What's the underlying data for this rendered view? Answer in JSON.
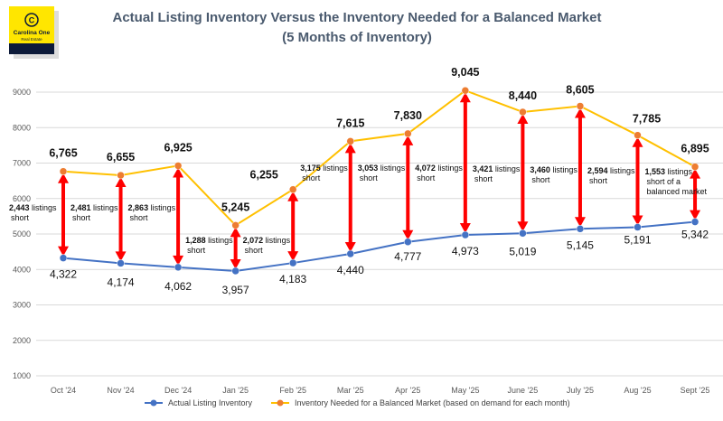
{
  "chart_data": {
    "type": "line",
    "title": "Actual Listing Inventory Versus the Inventory Needed for a Balanced Market",
    "subtitle": "(5 Months of Inventory)",
    "categories": [
      "Oct '24",
      "Nov '24",
      "Dec '24",
      "Jan '25",
      "Feb '25",
      "Mar '25",
      "Apr '25",
      "May '25",
      "June '25",
      "July '25",
      "Aug '25",
      "Sept '25"
    ],
    "ylim": [
      1000,
      9000
    ],
    "yticks": [
      1000,
      2000,
      3000,
      4000,
      5000,
      6000,
      7000,
      8000,
      9000
    ],
    "grid": true,
    "legend_position": "bottom",
    "series": [
      {
        "name": "Actual Listing Inventory",
        "color": "#4472C4",
        "values": [
          4322,
          4174,
          4062,
          3957,
          4183,
          4440,
          4777,
          4973,
          5019,
          5145,
          5191,
          5342
        ],
        "labels": [
          "4,322",
          "4,174",
          "4,062",
          "3,957",
          "4,183",
          "4,440",
          "4,777",
          "4,973",
          "5,019",
          "5,145",
          "5,191",
          "5,342"
        ]
      },
      {
        "name": "Inventory Needed for a Balanced Market (based on demand for each month)",
        "color": "#FFC000",
        "marker_color": "#ED7D31",
        "values": [
          6765,
          6655,
          6925,
          5245,
          6255,
          7615,
          7830,
          9045,
          8440,
          8605,
          7785,
          6895
        ],
        "labels": [
          "6,765",
          "6,655",
          "6,925",
          "5,245",
          "6,255",
          "7,615",
          "7,830",
          "9,045",
          "8,440",
          "8,605",
          "7,785",
          "6,895"
        ]
      }
    ],
    "gap_arrow_color": "#FF0000",
    "gap_annotations": [
      {
        "number": "2,443",
        "lines": [
          " listings",
          "short"
        ]
      },
      {
        "number": "2,481",
        "lines": [
          " listings",
          "short"
        ]
      },
      {
        "number": "2,863",
        "lines": [
          " listings",
          "short"
        ]
      },
      {
        "number": "1,288",
        "lines": [
          " listings",
          "short"
        ]
      },
      {
        "number": "2,072",
        "lines": [
          " listings",
          "short"
        ]
      },
      {
        "number": "3,175",
        "lines": [
          " listings",
          "short"
        ]
      },
      {
        "number": "3,053",
        "lines": [
          " listings",
          "short"
        ]
      },
      {
        "number": "4,072",
        "lines": [
          " listings",
          "short"
        ]
      },
      {
        "number": "3,421",
        "lines": [
          " listings",
          "short"
        ]
      },
      {
        "number": "3,460",
        "lines": [
          " listings",
          "short"
        ]
      },
      {
        "number": "2,594",
        "lines": [
          " listings",
          "short"
        ]
      },
      {
        "number": "1,553",
        "lines": [
          " listings",
          "short of a",
          "balanced market"
        ]
      }
    ]
  },
  "logo": {
    "name": "Carolina One",
    "sub": "Real Estate",
    "symbol": "©"
  }
}
